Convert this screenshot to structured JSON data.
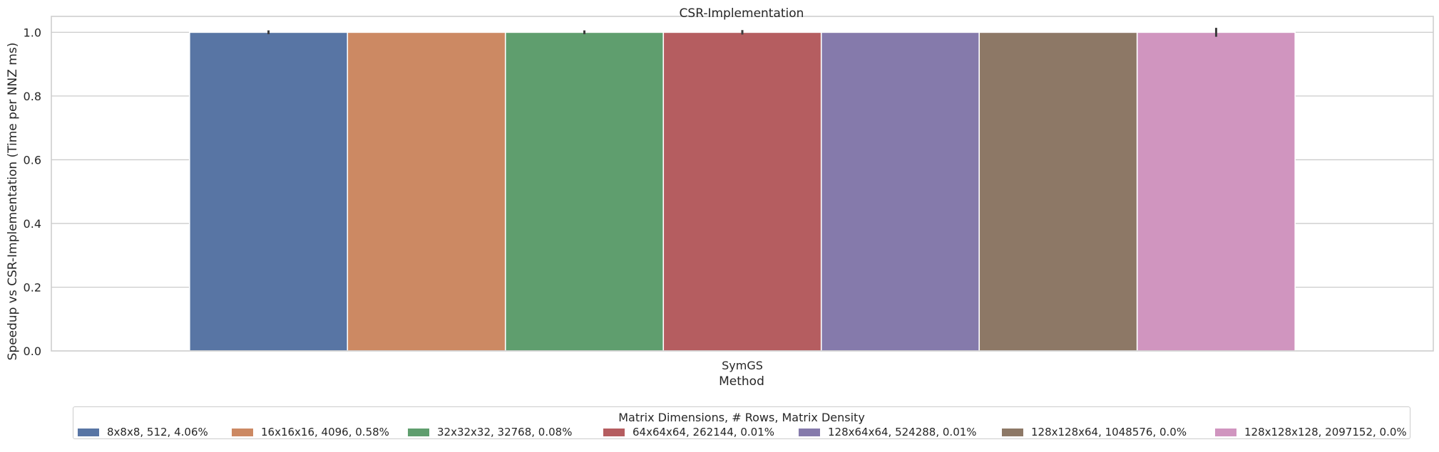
{
  "chart_data": {
    "type": "bar",
    "title": "CSR-Implementation",
    "xlabel": "Method",
    "ylabel": "Speedup vs CSR-Implementation (Time per NNZ ms)",
    "categories": [
      "SymGS"
    ],
    "ylim": [
      0,
      1.05
    ],
    "yticks": [
      "0.0",
      "0.2",
      "0.4",
      "0.6",
      "0.8",
      "1.0"
    ],
    "grid": true,
    "legend_title": "Matrix Dimensions, # Rows, Matrix Density",
    "legend_position": "bottom-center",
    "series": [
      {
        "name": "8x8x8, 512, 4.06%",
        "values": [
          1.0
        ],
        "error": [
          0.006
        ],
        "color": "#5875a4"
      },
      {
        "name": "16x16x16, 4096, 0.58%",
        "values": [
          1.0
        ],
        "error": [
          0.0
        ],
        "color": "#cc8963"
      },
      {
        "name": "32x32x32, 32768, 0.08%",
        "values": [
          1.0
        ],
        "error": [
          0.006
        ],
        "color": "#5f9e6e"
      },
      {
        "name": "64x64x64, 262144, 0.01%",
        "values": [
          1.0
        ],
        "error": [
          0.007
        ],
        "color": "#b55d60"
      },
      {
        "name": "128x64x64, 524288, 0.01%",
        "values": [
          1.0
        ],
        "error": [
          0.0
        ],
        "color": "#857aab"
      },
      {
        "name": "128x128x64, 1048576, 0.0%",
        "values": [
          1.0
        ],
        "error": [
          0.0
        ],
        "color": "#8d7866"
      },
      {
        "name": "128x128x128, 2097152, 0.0%",
        "values": [
          1.0
        ],
        "error": [
          0.014
        ],
        "color": "#d095bf"
      }
    ]
  }
}
